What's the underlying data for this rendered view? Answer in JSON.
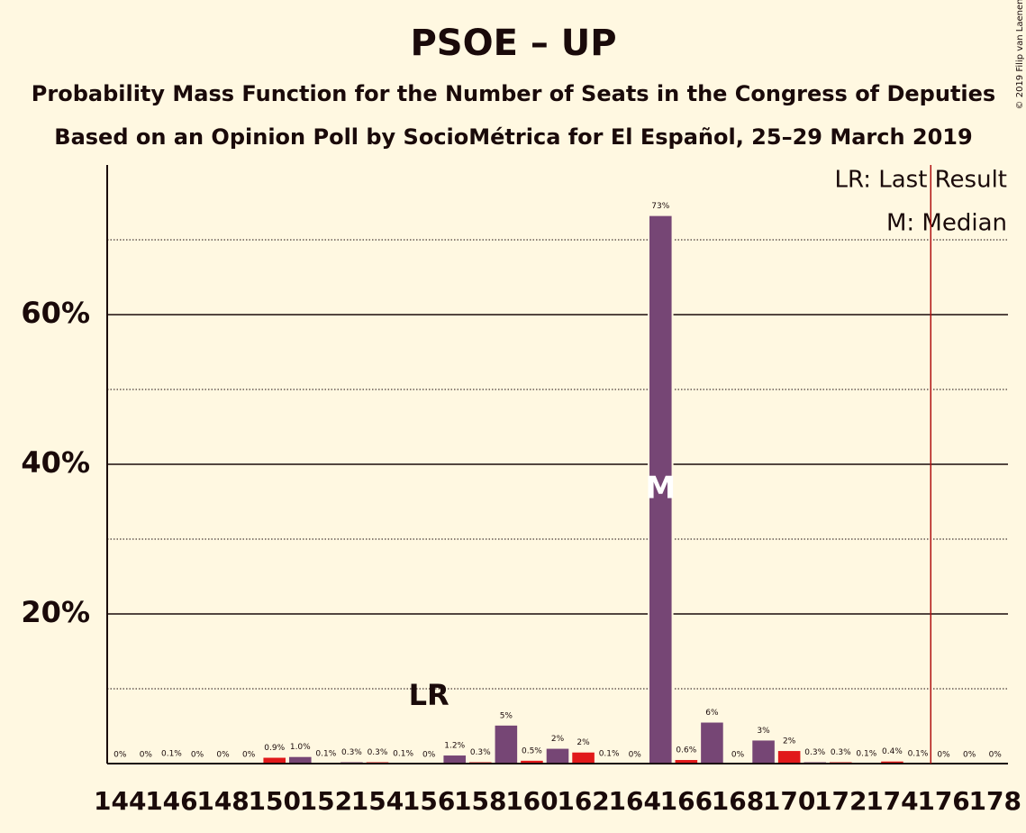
{
  "chart_data": {
    "type": "bar",
    "title": "PSOE – UP",
    "subtitle": "Probability Mass Function for the Number of Seats in the Congress of Deputies",
    "subtitle2": "Based on an Opinion Poll by SocioMétrica for El Español, 25–29 March 2019",
    "categories": [
      "144",
      null,
      "146",
      null,
      "148",
      null,
      "150",
      null,
      "152",
      null,
      "154",
      null,
      "156",
      null,
      "158",
      null,
      "160",
      null,
      "162",
      null,
      "164",
      null,
      "166",
      null,
      "168",
      null,
      "170",
      null,
      "172",
      null,
      "174",
      null,
      "176",
      null,
      "178"
    ],
    "values": [
      0,
      0,
      0.1,
      0,
      0,
      0,
      0.9,
      1.0,
      0.1,
      0.3,
      0.3,
      0.1,
      0,
      1.2,
      0.3,
      5.2,
      0.5,
      2.1,
      1.6,
      0.1,
      0,
      73.3,
      0.6,
      5.6,
      0,
      3.2,
      1.8,
      0.3,
      0.3,
      0.1,
      0.4,
      0.1,
      0,
      0,
      0
    ],
    "value_labels": [
      "0%",
      "0%",
      "0.1%",
      "0%",
      "0%",
      "0%",
      "0.9%",
      "1.0%",
      "0.1%",
      "0.3%",
      "0.3%",
      "0.1%",
      "0%",
      "1.2%",
      "0.3%",
      "5%",
      "0.5%",
      "2%",
      "2%",
      "0.1%",
      "0%",
      "73%",
      "0.6%",
      "6%",
      "0%",
      "3%",
      "2%",
      "0.3%",
      "0.3%",
      "0.1%",
      "0.4%",
      "0.1%",
      "0%",
      "0%",
      "0%"
    ],
    "colors": [
      "#e1191a",
      "#764675",
      "#e1191a",
      "#764675",
      "#e1191a",
      "#764675",
      "#e1191a",
      "#764675",
      "#e1191a",
      "#764675",
      "#e1191a",
      "#764675",
      "#e1191a",
      "#764675",
      "#e1191a",
      "#764675",
      "#e1191a",
      "#764675",
      "#e1191a",
      "#764675",
      "#e1191a",
      "#764675",
      "#e1191a",
      "#764675",
      "#e1191a",
      "#764675",
      "#e1191a",
      "#764675",
      "#e1191a",
      "#764675",
      "#e1191a",
      "#764675",
      "#e1191a",
      "#764675",
      "#e1191a"
    ],
    "ylim": [
      0,
      80
    ],
    "yticks": [
      {
        "value": 20,
        "label": "20%"
      },
      {
        "value": 40,
        "label": "40%"
      },
      {
        "value": 60,
        "label": "60%"
      }
    ],
    "minor_yticks": [
      10,
      30,
      50,
      70
    ],
    "grid": true,
    "last_result_index": 12,
    "last_result_label": "LR",
    "median_index": 21,
    "median_label": "M",
    "majority_index": 32,
    "majority_color": "#b01010",
    "legend": [
      "LR: Last Result",
      "M: Median"
    ],
    "credit": "© 2019 Filip van Laenen"
  }
}
